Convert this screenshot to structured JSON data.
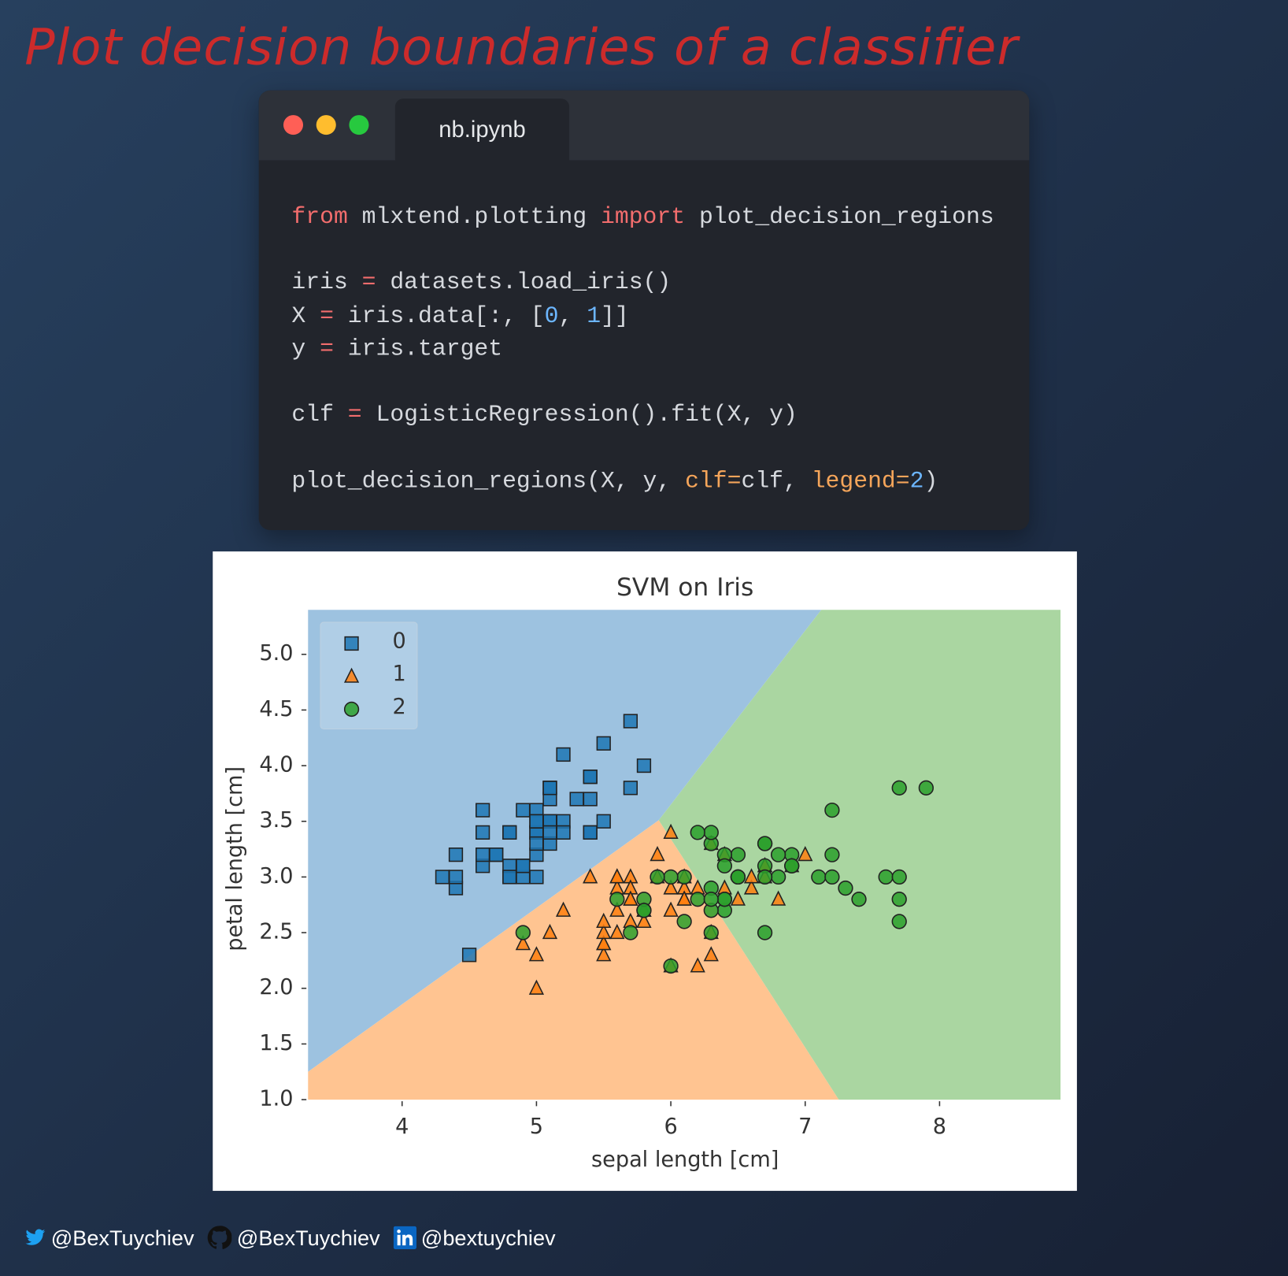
{
  "header": {
    "title": "Plot decision boundaries of a classifier"
  },
  "window": {
    "tab": "nb.ipynb"
  },
  "code": {
    "lines": [
      [
        {
          "text": "from",
          "color": "#f26d6d"
        },
        {
          "text": " mlxtend.plotting ",
          "color": "#d6d9de"
        },
        {
          "text": "import",
          "color": "#f26d6d"
        },
        {
          "text": " plot_decision_regions",
          "color": "#d6d9de"
        }
      ],
      [],
      [
        {
          "text": "iris ",
          "color": "#d6d9de"
        },
        {
          "text": "=",
          "color": "#f26d6d"
        },
        {
          "text": " datasets.load_iris()",
          "color": "#d6d9de"
        }
      ],
      [
        {
          "text": "X ",
          "color": "#d6d9de"
        },
        {
          "text": "=",
          "color": "#f26d6d"
        },
        {
          "text": " iris.data[:, [",
          "color": "#d6d9de"
        },
        {
          "text": "0",
          "color": "#6cb6ff"
        },
        {
          "text": ", ",
          "color": "#d6d9de"
        },
        {
          "text": "1",
          "color": "#6cb6ff"
        },
        {
          "text": "]]",
          "color": "#d6d9de"
        }
      ],
      [
        {
          "text": "y ",
          "color": "#d6d9de"
        },
        {
          "text": "=",
          "color": "#f26d6d"
        },
        {
          "text": " iris.target",
          "color": "#d6d9de"
        }
      ],
      [],
      [
        {
          "text": "clf ",
          "color": "#d6d9de"
        },
        {
          "text": "=",
          "color": "#f26d6d"
        },
        {
          "text": " LogisticRegression().fit(X, y)",
          "color": "#d6d9de"
        }
      ],
      [],
      [
        {
          "text": "plot_decision_regions(X, y, ",
          "color": "#d6d9de"
        },
        {
          "text": "clf=",
          "color": "#f5a55a"
        },
        {
          "text": "clf, ",
          "color": "#d6d9de"
        },
        {
          "text": "legend=",
          "color": "#f5a55a"
        },
        {
          "text": "2",
          "color": "#6cb6ff"
        },
        {
          "text": ")",
          "color": "#d6d9de"
        }
      ]
    ]
  },
  "chart_data": {
    "type": "scatter",
    "title": "SVM on Iris",
    "x_label": "sepal length [cm]",
    "y_label": "petal length [cm]",
    "xlim": [
      3.3,
      8.9
    ],
    "ylim": [
      1.0,
      5.4
    ],
    "xticks": [
      4,
      5,
      6,
      7,
      8
    ],
    "yticks": [
      {
        "value": 1,
        "label": "1.0"
      },
      1.5,
      {
        "value": 2,
        "label": "2.0"
      },
      2.5,
      {
        "value": 3,
        "label": "3.0"
      },
      3.5,
      {
        "value": 4,
        "label": "4.0"
      },
      4.5,
      {
        "value": 5,
        "label": "5.0"
      }
    ],
    "legend": "upper left",
    "regions": [
      {
        "color": "#9dc2e0",
        "x": [
          3.3,
          7.12,
          5.91,
          3.3
        ],
        "y": [
          5.4,
          5.4,
          3.51,
          1.25
        ]
      },
      {
        "color": "#ffc491",
        "x": [
          3.3,
          5.91,
          7.25,
          3.3
        ],
        "y": [
          1.25,
          3.51,
          1.0,
          1.0
        ]
      },
      {
        "color": "#aad6a1",
        "x": [
          7.12,
          8.9,
          8.9,
          7.25,
          5.91
        ],
        "y": [
          5.4,
          5.4,
          1.0,
          1.0,
          3.51
        ]
      }
    ],
    "series": [
      {
        "name": "0",
        "color": "#1f77b4",
        "marker": "s",
        "x": [
          5.1,
          4.9,
          4.7,
          4.6,
          5.0,
          5.4,
          4.6,
          5.0,
          4.4,
          4.9,
          5.4,
          4.8,
          4.8,
          4.3,
          5.8,
          5.7,
          5.4,
          5.1,
          5.7,
          5.1,
          5.4,
          5.1,
          4.6,
          5.1,
          4.8,
          5.0,
          5.0,
          5.2,
          5.2,
          4.7,
          4.8,
          5.4,
          5.2,
          5.5,
          4.9,
          5.0,
          5.5,
          4.9,
          4.4,
          5.1,
          5.0,
          4.5,
          4.4,
          5.0,
          5.1,
          4.8,
          5.1,
          4.6,
          5.3,
          5.0
        ],
        "values": [
          3.5,
          3.0,
          3.2,
          3.1,
          3.6,
          3.9,
          3.4,
          3.4,
          2.9,
          3.1,
          3.7,
          3.4,
          3.0,
          3.0,
          4.0,
          4.4,
          3.9,
          3.5,
          3.8,
          3.8,
          3.4,
          3.7,
          3.6,
          3.3,
          3.4,
          3.0,
          3.4,
          3.5,
          3.4,
          3.2,
          3.1,
          3.4,
          4.1,
          4.2,
          3.1,
          3.2,
          3.5,
          3.6,
          3.0,
          3.4,
          3.5,
          2.3,
          3.2,
          3.5,
          3.8,
          3.0,
          3.8,
          3.2,
          3.7,
          3.3
        ]
      },
      {
        "name": "1",
        "color": "#ff7f0e",
        "marker": "^",
        "x": [
          7.0,
          6.4,
          6.9,
          5.5,
          6.5,
          5.7,
          6.3,
          4.9,
          6.6,
          5.2,
          5.0,
          5.9,
          6.0,
          6.1,
          5.6,
          6.7,
          5.6,
          5.8,
          6.2,
          5.6,
          5.9,
          6.1,
          6.3,
          6.1,
          6.4,
          6.6,
          6.8,
          6.7,
          6.0,
          5.7,
          5.5,
          5.5,
          5.8,
          6.0,
          5.4,
          6.0,
          6.7,
          6.3,
          5.6,
          5.5,
          5.5,
          6.1,
          5.8,
          5.0,
          5.6,
          5.7,
          5.7,
          6.2,
          5.1,
          5.7
        ],
        "values": [
          3.2,
          3.2,
          3.1,
          2.3,
          2.8,
          2.8,
          3.3,
          2.4,
          2.9,
          2.7,
          2.0,
          3.0,
          2.2,
          2.9,
          2.9,
          3.1,
          3.0,
          2.7,
          2.2,
          2.5,
          3.2,
          2.8,
          2.5,
          2.8,
          2.9,
          3.0,
          2.8,
          3.0,
          2.9,
          2.6,
          2.4,
          2.4,
          2.7,
          2.7,
          3.0,
          3.4,
          3.1,
          2.3,
          3.0,
          2.5,
          2.6,
          3.0,
          2.6,
          2.3,
          2.7,
          3.0,
          2.9,
          2.9,
          2.5,
          2.8
        ]
      },
      {
        "name": "2",
        "color": "#2ca02c",
        "marker": "o",
        "x": [
          6.3,
          5.8,
          7.1,
          6.3,
          6.5,
          7.6,
          4.9,
          7.3,
          6.7,
          7.2,
          6.5,
          6.4,
          6.8,
          5.7,
          5.8,
          6.4,
          6.5,
          7.7,
          7.7,
          6.0,
          6.9,
          5.6,
          7.7,
          6.3,
          6.7,
          7.2,
          6.2,
          6.1,
          6.4,
          7.2,
          7.4,
          7.9,
          6.4,
          6.3,
          6.1,
          7.7,
          6.3,
          6.4,
          6.0,
          6.9,
          6.7,
          6.9,
          5.8,
          6.8,
          6.7,
          6.7,
          6.3,
          6.5,
          6.2,
          5.9
        ],
        "values": [
          3.3,
          2.7,
          3.0,
          2.9,
          3.0,
          3.0,
          2.5,
          2.9,
          2.5,
          3.6,
          3.2,
          2.7,
          3.0,
          2.5,
          2.8,
          3.2,
          3.0,
          3.8,
          2.6,
          2.2,
          3.2,
          2.8,
          2.8,
          2.7,
          3.3,
          3.2,
          2.8,
          3.0,
          2.8,
          3.0,
          2.8,
          3.8,
          2.8,
          2.8,
          2.6,
          3.0,
          3.4,
          3.1,
          3.0,
          3.1,
          3.1,
          3.1,
          2.7,
          3.2,
          3.3,
          3.0,
          2.5,
          3.0,
          3.4,
          3.0
        ]
      }
    ]
  },
  "footer": {
    "handles": [
      "@BexTuychiev",
      "@BexTuychiev",
      "@bextuychiev"
    ]
  }
}
